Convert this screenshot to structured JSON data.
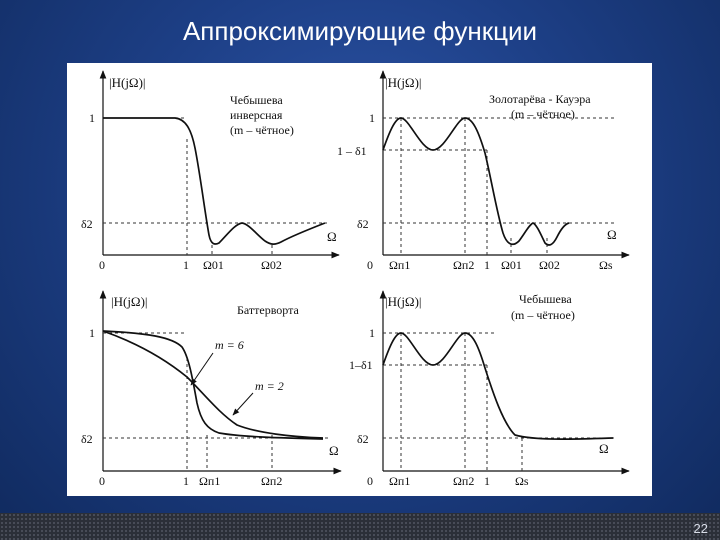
{
  "slide": {
    "title": "Аппроксимирующие функции",
    "page_number": "22"
  },
  "panels": {
    "top_left": {
      "ylabel": "|H(jΩ)|",
      "title_lines": [
        "Чебышева",
        "инверсная",
        "(m – чётное)"
      ],
      "y_ticks": [
        "1",
        "δ2"
      ],
      "x_ticks": [
        "0",
        "1",
        "Ω01",
        "Ω02"
      ],
      "x_axis": "Ω"
    },
    "top_right": {
      "ylabel": "|H(jΩ)|",
      "title_lines": [
        "Золотарёва - Кауэра",
        "(m – чётное)"
      ],
      "y_ticks": [
        "1",
        "1 – δ1",
        "δ2"
      ],
      "x_ticks": [
        "0",
        "Ωп1",
        "Ωп2",
        "1",
        "Ω01",
        "Ω02",
        "Ωs"
      ],
      "x_axis": "Ω"
    },
    "bottom_left": {
      "ylabel": "|H(jΩ)|",
      "title_lines": [
        "Баттерворта"
      ],
      "y_ticks": [
        "1",
        "δ2"
      ],
      "x_ticks": [
        "0",
        "1",
        "Ωп1",
        "Ωп2"
      ],
      "x_axis": "Ω",
      "curve_labels": [
        "m = 6",
        "m = 2"
      ]
    },
    "bottom_right": {
      "ylabel": "|H(jΩ)|",
      "title_lines": [
        "Чебышева",
        "(m – чётное)"
      ],
      "y_ticks": [
        "1",
        "1–δ1",
        "δ2"
      ],
      "x_ticks": [
        "0",
        "Ωп1",
        "Ωп2",
        "1",
        "Ωs"
      ],
      "x_axis": "Ω"
    }
  }
}
